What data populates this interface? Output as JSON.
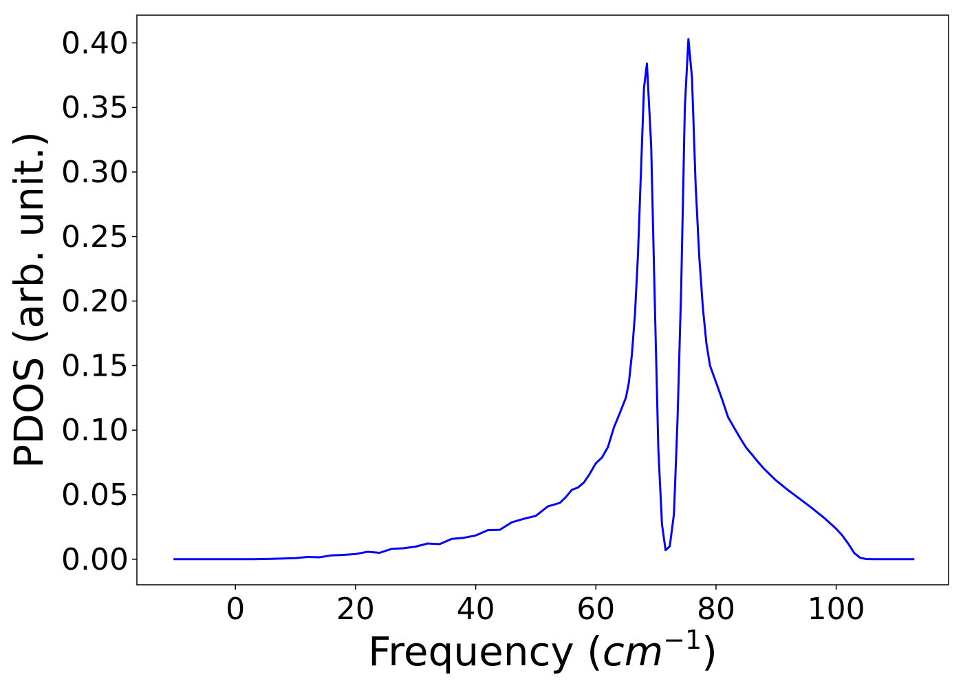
{
  "chart_data": {
    "type": "line",
    "title": "",
    "xlabel_main": "Frequency (",
    "xlabel_unit": "cm",
    "xlabel_exponent": "−1",
    "xlabel_close": ")",
    "ylabel": "PDOS (arb. unit.)",
    "xlim": [
      -16.4,
      118.7
    ],
    "ylim": [
      -0.0198,
      0.4215
    ],
    "grid": false,
    "legend": "none",
    "colors": {
      "line": "#0000ff",
      "axes": "#000000",
      "background": "#ffffff"
    },
    "xticks": [
      0,
      20,
      40,
      60,
      80,
      100
    ],
    "xtick_labels": [
      "0",
      "20",
      "40",
      "60",
      "80",
      "100"
    ],
    "yticks": [
      0.0,
      0.05,
      0.1,
      0.15,
      0.2,
      0.25,
      0.3,
      0.35,
      0.4
    ],
    "ytick_labels": [
      "0.00",
      "0.05",
      "0.10",
      "0.15",
      "0.20",
      "0.25",
      "0.30",
      "0.35",
      "0.40"
    ],
    "series": [
      {
        "x": [
          -10.3,
          0,
          3,
          6,
          8,
          10,
          12,
          14,
          16,
          18,
          20,
          22,
          24,
          26,
          28,
          30,
          32,
          34,
          36,
          38,
          40,
          42,
          44,
          46,
          48,
          50,
          52,
          54,
          55,
          56,
          57,
          58,
          59,
          60,
          61,
          62,
          63,
          64,
          65,
          65.5,
          66,
          66.5,
          67,
          67.5,
          68,
          68.5,
          69.2,
          69.8,
          70.4,
          71,
          71.6,
          72.3,
          73,
          73.6,
          74.2,
          74.8,
          75.4,
          76,
          76.6,
          77.2,
          77.8,
          78.4,
          79,
          80,
          81,
          82,
          83,
          84,
          85,
          86,
          87,
          88,
          89,
          90,
          92,
          94,
          96,
          98,
          100,
          101,
          102,
          103,
          104,
          105,
          106,
          108,
          110,
          113
        ],
        "y": [
          0,
          0,
          0,
          0.0003,
          0.0006,
          0.0009,
          0.0018,
          0.0015,
          0.003,
          0.0034,
          0.004,
          0.0058,
          0.005,
          0.008,
          0.0085,
          0.0098,
          0.0122,
          0.0117,
          0.0158,
          0.0166,
          0.0184,
          0.0225,
          0.0228,
          0.0286,
          0.0313,
          0.0336,
          0.0409,
          0.0437,
          0.0481,
          0.0538,
          0.0555,
          0.0594,
          0.0664,
          0.0744,
          0.0787,
          0.0869,
          0.1021,
          0.1134,
          0.1253,
          0.137,
          0.159,
          0.19,
          0.235,
          0.3,
          0.365,
          0.384,
          0.32,
          0.2,
          0.085,
          0.027,
          0.007,
          0.01,
          0.035,
          0.11,
          0.21,
          0.35,
          0.403,
          0.373,
          0.29,
          0.235,
          0.195,
          0.167,
          0.15,
          0.137,
          0.124,
          0.11,
          0.102,
          0.094,
          0.0865,
          0.081,
          0.0753,
          0.07,
          0.0655,
          0.061,
          0.0535,
          0.0465,
          0.0395,
          0.032,
          0.0236,
          0.0185,
          0.0121,
          0.0048,
          0.0011,
          0.0002,
          0,
          0,
          0,
          0
        ]
      }
    ]
  }
}
